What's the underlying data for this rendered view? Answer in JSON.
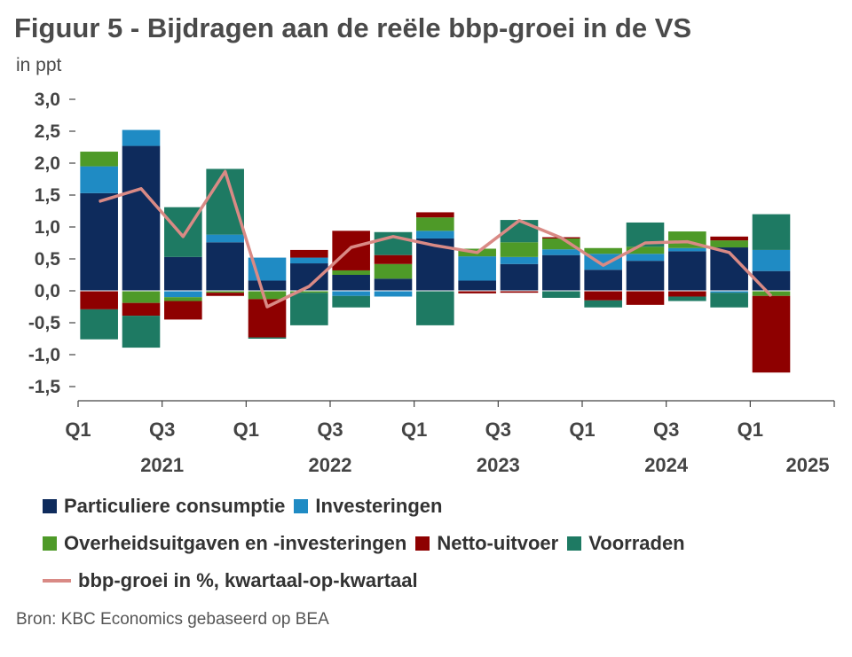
{
  "title": "Figuur 5 - Bijdragen aan de reële bbp-groei in de VS",
  "unit": "in ppt",
  "source": "Bron: KBC Economics gebaseerd op BEA",
  "colors": {
    "consumption": "#0e2b5c",
    "investment": "#1f8bc4",
    "government": "#4e9a28",
    "net_exports": "#8e0000",
    "inventories": "#1e7a63",
    "gdp_line": "#d98a85"
  },
  "chart_data": {
    "type": "bar",
    "stacked": true,
    "categories": [
      "2021 Q1",
      "2021 Q2",
      "2021 Q3",
      "2021 Q4",
      "2022 Q1",
      "2022 Q2",
      "2022 Q3",
      "2022 Q4",
      "2023 Q1",
      "2023 Q2",
      "2023 Q3",
      "2023 Q4",
      "2024 Q1",
      "2024 Q2",
      "2024 Q3",
      "2024 Q4",
      "2025 Q1",
      "2025 Q2"
    ],
    "ylim": [
      -1.5,
      3.0
    ],
    "yticks": [
      "3,0",
      "2,5",
      "2,0",
      "1,5",
      "1,0",
      "0,5",
      "0,0",
      "-0,5",
      "-1,0",
      "-1,5"
    ],
    "ytick_values": [
      3.0,
      2.5,
      2.0,
      1.5,
      1.0,
      0.5,
      0.0,
      -0.5,
      -1.0,
      -1.5
    ],
    "xtick_labels": [
      {
        "index": 0,
        "label": "Q1",
        "year": ""
      },
      {
        "index": 2,
        "label": "Q3",
        "year": "2021"
      },
      {
        "index": 4,
        "label": "Q1",
        "year": ""
      },
      {
        "index": 6,
        "label": "Q3",
        "year": "2022"
      },
      {
        "index": 8,
        "label": "Q1",
        "year": ""
      },
      {
        "index": 10,
        "label": "Q3",
        "year": "2023"
      },
      {
        "index": 12,
        "label": "Q1",
        "year": ""
      },
      {
        "index": 14,
        "label": "Q3",
        "year": "2024"
      },
      {
        "index": 16,
        "label": "Q1",
        "year": "2025"
      }
    ],
    "series": [
      {
        "name": "Particuliere consumptie",
        "key": "consumption",
        "values": [
          1.53,
          2.27,
          0.53,
          0.76,
          0.16,
          0.43,
          0.25,
          0.19,
          0.82,
          0.16,
          0.42,
          0.56,
          0.33,
          0.47,
          0.62,
          0.68,
          0.31,
          0.0
        ]
      },
      {
        "name": "Investeringen",
        "key": "investment",
        "values": [
          0.42,
          0.25,
          -0.1,
          0.12,
          0.36,
          0.09,
          -0.08,
          -0.09,
          0.12,
          0.38,
          0.11,
          0.09,
          0.25,
          0.11,
          0.05,
          -0.03,
          0.33,
          0.0
        ]
      },
      {
        "name": "Overheidsuitgaven en -investeringen",
        "key": "government",
        "values": [
          0.23,
          -0.19,
          -0.06,
          -0.03,
          -0.13,
          -0.03,
          0.07,
          0.23,
          0.21,
          0.12,
          0.23,
          0.17,
          0.09,
          0.11,
          0.26,
          0.11,
          -0.08,
          0.0
        ]
      },
      {
        "name": "Netto-uitvoer",
        "key": "net_exports",
        "values": [
          -0.29,
          -0.2,
          -0.29,
          -0.05,
          -0.6,
          0.12,
          0.62,
          0.14,
          0.08,
          -0.04,
          -0.03,
          0.02,
          -0.15,
          -0.22,
          -0.09,
          0.06,
          -1.2,
          0.0
        ]
      },
      {
        "name": "Voorraden",
        "key": "inventories",
        "values": [
          -0.47,
          -0.5,
          0.78,
          1.03,
          -0.02,
          -0.51,
          -0.18,
          0.36,
          -0.54,
          0.0,
          0.35,
          -0.11,
          -0.11,
          0.38,
          -0.07,
          -0.23,
          0.56,
          0.0
        ]
      }
    ],
    "line": {
      "name": "bbp-groei in %, kwartaal-op-kwartaal",
      "key": "gdp_line",
      "values": [
        1.4,
        1.6,
        0.85,
        1.87,
        -0.25,
        0.07,
        0.68,
        0.85,
        0.71,
        0.6,
        1.1,
        0.83,
        0.4,
        0.75,
        0.77,
        0.6,
        -0.08,
        null
      ]
    },
    "legend": [
      [
        "consumption",
        "investment"
      ],
      [
        "government",
        "net_exports",
        "inventories"
      ],
      [
        "gdp_line"
      ]
    ]
  }
}
